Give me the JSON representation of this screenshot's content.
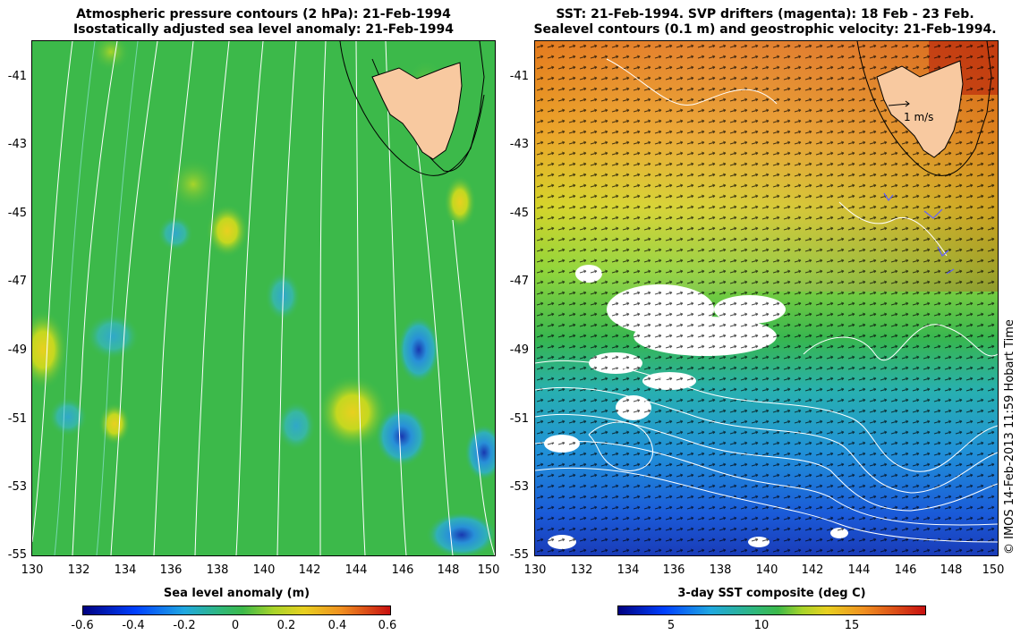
{
  "left_panel": {
    "title_line1": "Atmospheric pressure contours (2 hPa): 21-Feb-1994",
    "title_line2": "Isostatically adjusted sea level anomaly: 21-Feb-1994",
    "lat_labels": [
      "-41",
      "-43",
      "-45",
      "-47",
      "-49",
      "-51",
      "-53",
      "-55"
    ],
    "lon_labels": [
      "130",
      "132",
      "134",
      "136",
      "138",
      "140",
      "142",
      "144",
      "146",
      "148",
      "150"
    ],
    "colorbar_title": "Sea level anomaly (m)",
    "colorbar_ticks": [
      "-0.6",
      "-0.4",
      "-0.2",
      "0",
      "0.2",
      "0.4",
      "0.6"
    ]
  },
  "right_panel": {
    "title_line1": "SST: 21-Feb-1994. SVP drifters (magenta): 18 Feb - 23 Feb.",
    "title_line2": "Sealevel contours (0.1 m) and geostrophic velocity: 21-Feb-1994.",
    "lat_labels": [
      "-41",
      "-43",
      "-45",
      "-47",
      "-49",
      "-51",
      "-53",
      "-55"
    ],
    "lon_labels": [
      "130",
      "132",
      "134",
      "136",
      "138",
      "140",
      "142",
      "144",
      "146",
      "148",
      "150"
    ],
    "scale_arrow_label": "1 m/s",
    "colorbar_title": "3-day SST composite (deg C)",
    "colorbar_ticks": [
      "5",
      "10",
      "15"
    ]
  },
  "credit": "© IMOS 14-Feb-2013 11:59 Hobart Time",
  "map_extent": {
    "lon": [
      130,
      150
    ],
    "lat": [
      -55,
      -40
    ]
  },
  "colors": {
    "land": "#f8c9a0",
    "sla_base": "#3cb94a",
    "sst_warm": "#e67a1e",
    "sst_cold": "#1a4fd0",
    "contour": "#ffffff",
    "coast": "#000000"
  }
}
